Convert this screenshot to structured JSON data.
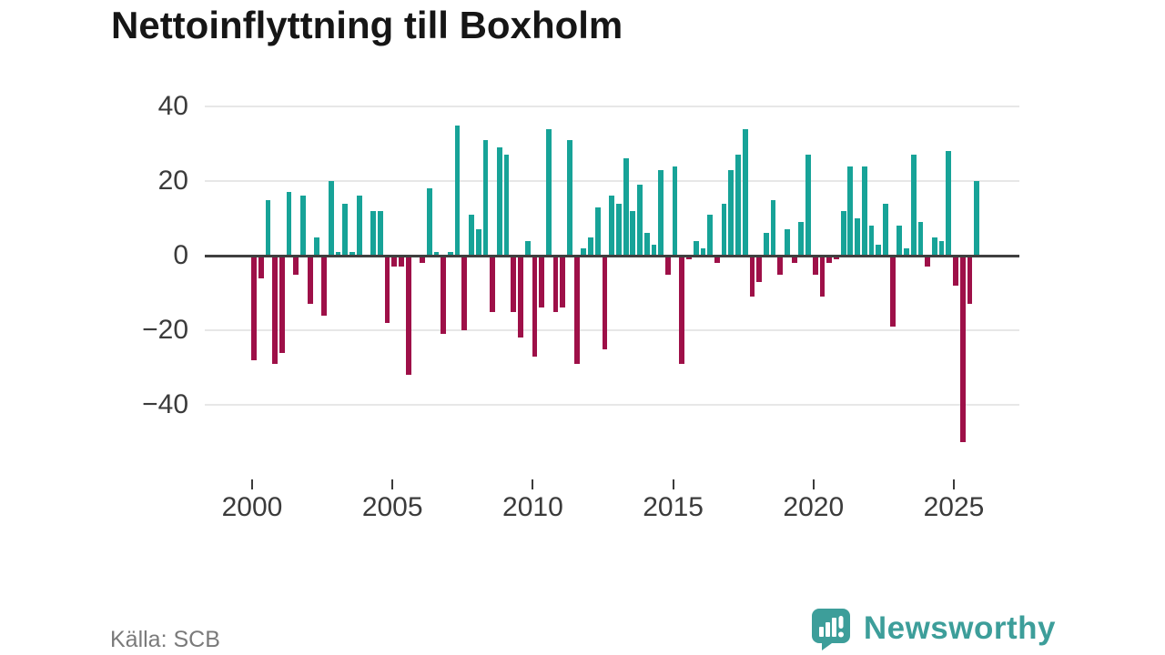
{
  "title": "Nettoinflyttning till Boxholm",
  "source": "Källa: SCB",
  "branding": {
    "name": "Newsworthy",
    "logo_icon": "bar-chart-speech-bubble",
    "color": "#3d9e9a"
  },
  "colors": {
    "positive_bar": "#17a398",
    "negative_bar": "#9e1048",
    "grid": "#e7e7e7",
    "zero_line": "#3f3f3f",
    "axis_text": "#3b3b3b",
    "source_text": "#7a7a7a",
    "title_text": "#161616"
  },
  "chart_data": {
    "type": "bar",
    "title": "Nettoinflyttning till Boxholm",
    "xlabel": "",
    "ylabel": "",
    "x_unit": "quarter",
    "legend": null,
    "grid": "horizontal",
    "ylim": [
      -52,
      42
    ],
    "y_ticks": [
      40,
      20,
      0,
      -20,
      -40
    ],
    "x_ticks": [
      2000,
      2005,
      2010,
      2015,
      2020,
      2025
    ],
    "series": [
      {
        "year": 2000,
        "values": [
          -28,
          -6,
          15,
          -29
        ]
      },
      {
        "year": 2001,
        "values": [
          -26,
          17,
          -5,
          16
        ]
      },
      {
        "year": 2002,
        "values": [
          -13,
          5,
          -16,
          20
        ]
      },
      {
        "year": 2003,
        "values": [
          1,
          14,
          1,
          16
        ]
      },
      {
        "year": 2004,
        "values": [
          0,
          12,
          12,
          -18
        ]
      },
      {
        "year": 2005,
        "values": [
          -3,
          -3,
          -32,
          0
        ]
      },
      {
        "year": 2006,
        "values": [
          -2,
          18,
          1,
          -21
        ]
      },
      {
        "year": 2007,
        "values": [
          1,
          35,
          -20,
          11
        ]
      },
      {
        "year": 2008,
        "values": [
          7,
          31,
          -15,
          29
        ]
      },
      {
        "year": 2009,
        "values": [
          27,
          -15,
          -22,
          4
        ]
      },
      {
        "year": 2010,
        "values": [
          -27,
          -14,
          34,
          -15
        ]
      },
      {
        "year": 2011,
        "values": [
          -14,
          31,
          -29,
          2
        ]
      },
      {
        "year": 2012,
        "values": [
          5,
          13,
          -25,
          16
        ]
      },
      {
        "year": 2013,
        "values": [
          14,
          26,
          12,
          19
        ]
      },
      {
        "year": 2014,
        "values": [
          6,
          3,
          23,
          -5
        ]
      },
      {
        "year": 2015,
        "values": [
          24,
          -29,
          -1,
          4
        ]
      },
      {
        "year": 2016,
        "values": [
          2,
          11,
          -2,
          14
        ]
      },
      {
        "year": 2017,
        "values": [
          23,
          27,
          34,
          -11
        ]
      },
      {
        "year": 2018,
        "values": [
          -7,
          6,
          15,
          -5
        ]
      },
      {
        "year": 2019,
        "values": [
          7,
          -2,
          9,
          27
        ]
      },
      {
        "year": 2020,
        "values": [
          -5,
          -11,
          -2,
          -1
        ]
      },
      {
        "year": 2021,
        "values": [
          12,
          24,
          10,
          24
        ]
      },
      {
        "year": 2022,
        "values": [
          8,
          3,
          14,
          -19
        ]
      },
      {
        "year": 2023,
        "values": [
          8,
          2,
          27,
          9
        ]
      },
      {
        "year": 2024,
        "values": [
          -3,
          5,
          4,
          28
        ]
      },
      {
        "year": 2025,
        "values": [
          -8,
          -50,
          -13,
          20
        ]
      }
    ]
  }
}
